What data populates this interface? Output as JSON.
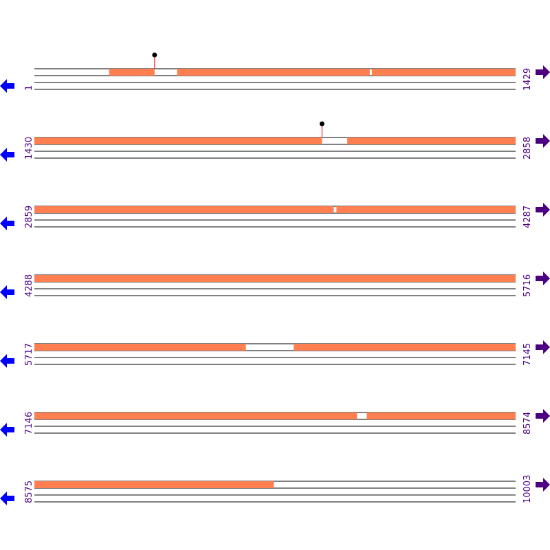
{
  "sequence": {
    "total_length": 10003,
    "bases_per_row": 1429,
    "rows": [
      {
        "start": 1,
        "end": 1429,
        "start_label": "1",
        "end_label": "1429"
      },
      {
        "start": 1430,
        "end": 2858,
        "start_label": "1430",
        "end_label": "2858"
      },
      {
        "start": 2859,
        "end": 4287,
        "start_label": "2859",
        "end_label": "4287"
      },
      {
        "start": 4288,
        "end": 5716,
        "start_label": "4288",
        "end_label": "5716"
      },
      {
        "start": 5717,
        "end": 7145,
        "start_label": "5717",
        "end_label": "7145"
      },
      {
        "start": 7146,
        "end": 8574,
        "start_label": "7146",
        "end_label": "8574"
      },
      {
        "start": 8575,
        "end": 10003,
        "start_label": "8575",
        "end_label": "10003"
      }
    ],
    "features": [
      [
        223,
        357
      ],
      [
        425,
        996
      ],
      [
        1003,
        2283
      ],
      [
        2359,
        3747
      ],
      [
        3756,
        6344
      ],
      [
        6487,
        8103
      ],
      [
        8133,
        9285
      ]
    ],
    "markers": [
      357,
      2283
    ],
    "icons": {
      "left": "arrow-left-icon",
      "right": "arrow-right-icon",
      "marker": "lollipop-marker-icon"
    }
  },
  "colors": {
    "feature": "#ff7f50",
    "label": "#4b0082",
    "left_arrow": "#0000ff",
    "right_arrow": "#4b0082",
    "marker_stem": "#ff0000",
    "marker_head": "#000000",
    "line": "#000000"
  }
}
